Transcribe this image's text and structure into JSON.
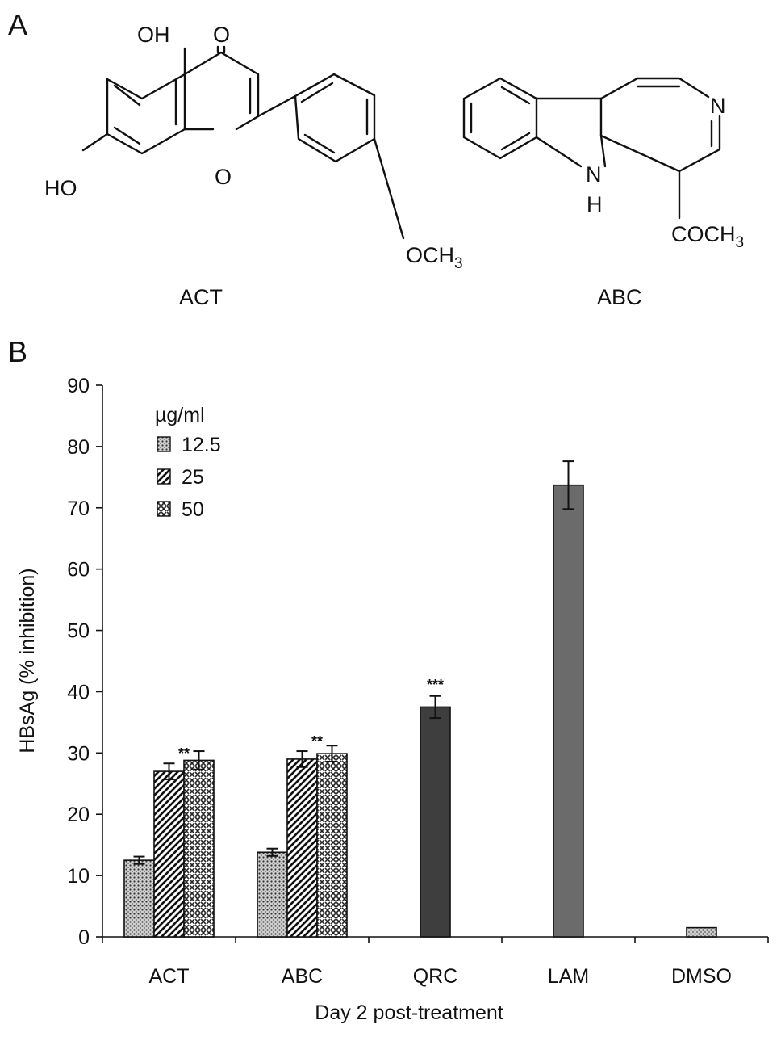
{
  "panel_a": {
    "label": "A",
    "compounds": [
      {
        "name": "ACT",
        "atoms": {
          "oh_top": "OH",
          "carbonyl_o": "O",
          "ho_left": "HO",
          "ring_o": "O",
          "methoxy": "OCH",
          "methoxy_sub": "3"
        }
      },
      {
        "name": "ABC",
        "atoms": {
          "nitrogen": "N",
          "nh_n": "N",
          "nh_h": "H",
          "acetyl": "COCH",
          "acetyl_sub": "3"
        }
      }
    ]
  },
  "panel_b": {
    "label": "B"
  },
  "chart_data": {
    "type": "bar",
    "title": "",
    "xlabel": "Day 2 post-treatment",
    "ylabel": "HBsAg (% inhibition)",
    "ylim": [
      0,
      90
    ],
    "yticks": [
      0,
      10,
      20,
      30,
      40,
      50,
      60,
      70,
      80,
      90
    ],
    "categories": [
      "ACT",
      "ABC",
      "QRC",
      "LAM",
      "DMSO"
    ],
    "legend": {
      "title": "µg/ml",
      "position": "top-left",
      "entries": [
        {
          "label": "12.5",
          "pattern": "dots"
        },
        {
          "label": "25",
          "pattern": "diagonal"
        },
        {
          "label": "50",
          "pattern": "crosshatch"
        }
      ]
    },
    "series": [
      {
        "name": "12.5",
        "values": [
          12.5,
          13.8,
          null,
          null,
          null
        ],
        "errors": [
          0.6,
          0.6,
          null,
          null,
          null
        ]
      },
      {
        "name": "25",
        "values": [
          27.0,
          29.0,
          null,
          null,
          null
        ],
        "errors": [
          1.3,
          1.3,
          null,
          null,
          null
        ]
      },
      {
        "name": "50",
        "values": [
          28.8,
          29.9,
          null,
          null,
          null
        ],
        "errors": [
          1.5,
          1.3,
          null,
          null,
          null
        ]
      }
    ],
    "single_bars": [
      {
        "category": "QRC",
        "value": 37.5,
        "error": 1.8,
        "color": "#3e3e3e",
        "significance": "***"
      },
      {
        "category": "LAM",
        "value": 73.7,
        "error": 3.9,
        "color": "#6b6b6b",
        "significance": ""
      },
      {
        "category": "DMSO",
        "value": 1.5,
        "error": 0,
        "color": "#9a9a9a",
        "significance": ""
      }
    ],
    "annotations": [
      {
        "category": "ACT",
        "series": "25",
        "text": "**"
      },
      {
        "category": "ABC",
        "series": "25",
        "text": "**"
      }
    ],
    "grid": false
  }
}
